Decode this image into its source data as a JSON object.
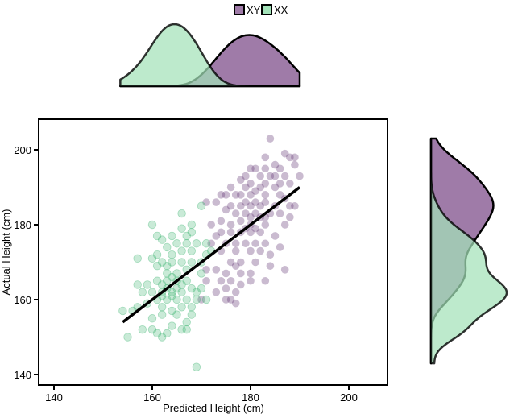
{
  "chart_data": {
    "type": "scatter",
    "xlabel": "Predicted Height (cm)",
    "ylabel": "Actual Height (cm)",
    "xlim": [
      137,
      208
    ],
    "ylim": [
      137,
      208
    ],
    "xticks": [
      "140",
      "160",
      "180",
      "200"
    ],
    "yticks": [
      "140",
      "160",
      "180",
      "200"
    ],
    "grid": false,
    "legend": {
      "placement": "top",
      "entries": [
        "XY",
        "XX"
      ]
    },
    "marginal_densities": {
      "top": "predicted height by group",
      "right": "actual height by group"
    },
    "regression_line": {
      "x": [
        154,
        190
      ],
      "y": [
        154,
        190
      ],
      "color": "#000000"
    },
    "colors": {
      "XY_point": "#5b2a6e",
      "XX_point": "#3cb371",
      "XY_fill": "#9f7ba8",
      "XX_fill": "#a3e2b9",
      "overlap": "#5e8a6e"
    },
    "series": [
      {
        "name": "XY",
        "points": [
          [
            184,
            203
          ],
          [
            187,
            199
          ],
          [
            183,
            198
          ],
          [
            188,
            198
          ],
          [
            189,
            198
          ],
          [
            185,
            196
          ],
          [
            189,
            196
          ],
          [
            186,
            195
          ],
          [
            180,
            195
          ],
          [
            183,
            195
          ],
          [
            181,
            195
          ],
          [
            190,
            193
          ],
          [
            187,
            193
          ],
          [
            185,
            193
          ],
          [
            184,
            193
          ],
          [
            182,
            193
          ],
          [
            179,
            193
          ],
          [
            178,
            192
          ],
          [
            180,
            191
          ],
          [
            183,
            191
          ],
          [
            188,
            191
          ],
          [
            186,
            191
          ],
          [
            176,
            190
          ],
          [
            179,
            190
          ],
          [
            182,
            190
          ],
          [
            185,
            190
          ],
          [
            181,
            189
          ],
          [
            177,
            188
          ],
          [
            175,
            188
          ],
          [
            174,
            188
          ],
          [
            178,
            188
          ],
          [
            180,
            188
          ],
          [
            183,
            188
          ],
          [
            186,
            188
          ],
          [
            187,
            187
          ],
          [
            189,
            185
          ],
          [
            188,
            185
          ],
          [
            185,
            185
          ],
          [
            182,
            185
          ],
          [
            180,
            185
          ],
          [
            178,
            185
          ],
          [
            176,
            185
          ],
          [
            173,
            186
          ],
          [
            171,
            186
          ],
          [
            175,
            184
          ],
          [
            177,
            183
          ],
          [
            179,
            183
          ],
          [
            181,
            183
          ],
          [
            184,
            183
          ],
          [
            186,
            183
          ],
          [
            188,
            182
          ],
          [
            187,
            180
          ],
          [
            183,
            180
          ],
          [
            180,
            180
          ],
          [
            178,
            181
          ],
          [
            176,
            180
          ],
          [
            174,
            181
          ],
          [
            172,
            180
          ],
          [
            174,
            178
          ],
          [
            176,
            178
          ],
          [
            178,
            178
          ],
          [
            180,
            178
          ],
          [
            182,
            178
          ],
          [
            185,
            177
          ],
          [
            173,
            177
          ],
          [
            175,
            175
          ],
          [
            177,
            175
          ],
          [
            179,
            175
          ],
          [
            181,
            175
          ],
          [
            183,
            175
          ],
          [
            186,
            174
          ],
          [
            172,
            175
          ],
          [
            174,
            173
          ],
          [
            177,
            173
          ],
          [
            180,
            173
          ],
          [
            182,
            173
          ],
          [
            184,
            172
          ],
          [
            176,
            170
          ],
          [
            178,
            170
          ],
          [
            181,
            170
          ],
          [
            184,
            169
          ],
          [
            187,
            168
          ],
          [
            171,
            168
          ],
          [
            173,
            168
          ],
          [
            177,
            169
          ],
          [
            175,
            167
          ],
          [
            178,
            167
          ],
          [
            180,
            167
          ],
          [
            174,
            165
          ],
          [
            176,
            165
          ],
          [
            178,
            164
          ],
          [
            180,
            165
          ],
          [
            183,
            165
          ],
          [
            171,
            165
          ],
          [
            175,
            163
          ],
          [
            177,
            162
          ],
          [
            173,
            162
          ],
          [
            170,
            160
          ],
          [
            175,
            160
          ],
          [
            176,
            160
          ],
          [
            177,
            159
          ],
          [
            179,
            186
          ],
          [
            181,
            186
          ],
          [
            183,
            186
          ],
          [
            180,
            182
          ],
          [
            182,
            182
          ],
          [
            181,
            179
          ],
          [
            179,
            179
          ],
          [
            183,
            182
          ]
        ]
      },
      {
        "name": "XX",
        "points": [
          [
            169,
            142
          ],
          [
            155,
            150
          ],
          [
            156,
            157
          ],
          [
            154,
            157
          ],
          [
            157,
            158
          ],
          [
            158,
            152
          ],
          [
            160,
            152
          ],
          [
            161,
            151
          ],
          [
            162,
            150
          ],
          [
            163,
            151
          ],
          [
            164,
            153
          ],
          [
            166,
            152
          ],
          [
            167,
            152
          ],
          [
            167,
            154
          ],
          [
            168,
            156
          ],
          [
            160,
            155
          ],
          [
            162,
            156
          ],
          [
            164,
            157
          ],
          [
            166,
            158
          ],
          [
            168,
            158
          ],
          [
            159,
            159
          ],
          [
            161,
            160
          ],
          [
            163,
            160
          ],
          [
            165,
            160
          ],
          [
            167,
            160
          ],
          [
            169,
            160
          ],
          [
            171,
            160
          ],
          [
            158,
            162
          ],
          [
            160,
            162
          ],
          [
            162,
            162
          ],
          [
            164,
            162
          ],
          [
            166,
            162
          ],
          [
            168,
            163
          ],
          [
            170,
            163
          ],
          [
            157,
            164
          ],
          [
            159,
            164
          ],
          [
            161,
            165
          ],
          [
            163,
            165
          ],
          [
            165,
            165
          ],
          [
            167,
            165
          ],
          [
            163,
            167
          ],
          [
            165,
            167
          ],
          [
            167,
            168
          ],
          [
            161,
            169
          ],
          [
            163,
            169
          ],
          [
            160,
            171
          ],
          [
            157,
            171
          ],
          [
            162,
            170
          ],
          [
            164,
            170
          ],
          [
            166,
            170
          ],
          [
            168,
            170
          ],
          [
            170,
            170
          ],
          [
            161,
            172
          ],
          [
            164,
            172
          ],
          [
            166,
            173
          ],
          [
            168,
            173
          ],
          [
            171,
            172
          ],
          [
            163,
            174
          ],
          [
            165,
            175
          ],
          [
            167,
            175
          ],
          [
            169,
            175
          ],
          [
            171,
            175
          ],
          [
            162,
            176
          ],
          [
            164,
            177
          ],
          [
            167,
            177
          ],
          [
            161,
            177
          ],
          [
            166,
            179
          ],
          [
            168,
            180
          ],
          [
            160,
            180
          ],
          [
            166,
            183
          ],
          [
            170,
            185
          ],
          [
            168,
            178
          ],
          [
            172,
            173
          ],
          [
            170,
            167
          ],
          [
            166,
            164
          ],
          [
            162,
            158
          ],
          [
            165,
            156
          ],
          [
            169,
            162
          ],
          [
            162,
            161
          ],
          [
            164,
            161
          ],
          [
            163,
            163
          ],
          [
            165,
            163
          ],
          [
            162,
            164
          ],
          [
            164,
            166
          ]
        ]
      }
    ]
  }
}
